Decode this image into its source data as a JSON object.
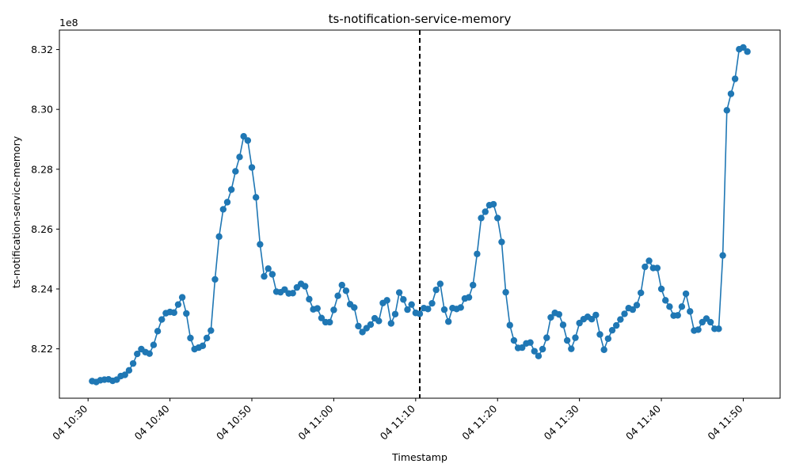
{
  "chart_data": {
    "type": "line",
    "title": "ts-notification-service-memory",
    "xlabel": "Timestamp",
    "ylabel": "ts-notification-service-memory",
    "y_offset_label": "1e8",
    "y_scale": 100000000.0,
    "ylim": [
      8.2035,
      8.3265
    ],
    "yticks": [
      8.22,
      8.24,
      8.26,
      8.28,
      8.3,
      8.32
    ],
    "ytick_labels": [
      "8.22",
      "8.24",
      "8.26",
      "8.28",
      "8.30",
      "8.32"
    ],
    "xlim": [
      "04 10:26:30",
      "04 11:54:30"
    ],
    "xticks": [
      "04 10:30",
      "04 10:40",
      "04 10:50",
      "04 11:00",
      "04 11:10",
      "04 11:20",
      "04 11:30",
      "04 11:40",
      "04 11:50"
    ],
    "vline": {
      "x": "04 11:10:30",
      "style": "dashed",
      "color": "#000000"
    },
    "grid": false,
    "series": [
      {
        "color": "#1f77b4",
        "x": [
          "04 10:30:30",
          "04 10:31:00",
          "04 10:31:30",
          "04 10:32:00",
          "04 10:32:30",
          "04 10:33:00",
          "04 10:33:30",
          "04 10:34:00",
          "04 10:34:30",
          "04 10:35:00",
          "04 10:35:30",
          "04 10:36:00",
          "04 10:36:30",
          "04 10:37:00",
          "04 10:37:30",
          "04 10:38:00",
          "04 10:38:30",
          "04 10:39:00",
          "04 10:39:30",
          "04 10:40:00",
          "04 10:40:30",
          "04 10:41:00",
          "04 10:41:30",
          "04 10:42:00",
          "04 10:42:30",
          "04 10:43:00",
          "04 10:43:30",
          "04 10:44:00",
          "04 10:44:30",
          "04 10:45:00",
          "04 10:45:30",
          "04 10:46:00",
          "04 10:46:30",
          "04 10:47:00",
          "04 10:47:30",
          "04 10:48:00",
          "04 10:48:30",
          "04 10:49:00",
          "04 10:49:30",
          "04 10:50:00",
          "04 10:50:30",
          "04 10:51:00",
          "04 10:51:30",
          "04 10:52:00",
          "04 10:52:30",
          "04 10:53:00",
          "04 10:53:30",
          "04 10:54:00",
          "04 10:54:30",
          "04 10:55:00",
          "04 10:55:30",
          "04 10:56:00",
          "04 10:56:30",
          "04 10:57:00",
          "04 10:57:30",
          "04 10:58:00",
          "04 10:58:30",
          "04 10:59:00",
          "04 10:59:30",
          "04 11:00:00",
          "04 11:00:30",
          "04 11:01:00",
          "04 11:01:30",
          "04 11:02:00",
          "04 11:02:30",
          "04 11:03:00",
          "04 11:03:30",
          "04 11:04:00",
          "04 11:04:30",
          "04 11:05:00",
          "04 11:05:30",
          "04 11:06:00",
          "04 11:06:30",
          "04 11:07:00",
          "04 11:07:30",
          "04 11:08:00",
          "04 11:08:30",
          "04 11:09:00",
          "04 11:09:30",
          "04 11:10:00",
          "04 11:10:30",
          "04 11:11:00",
          "04 11:11:30",
          "04 11:12:00",
          "04 11:12:30",
          "04 11:13:00",
          "04 11:13:30",
          "04 11:14:00",
          "04 11:14:30",
          "04 11:15:00",
          "04 11:15:30",
          "04 11:16:00",
          "04 11:16:30",
          "04 11:17:00",
          "04 11:17:30",
          "04 11:18:00",
          "04 11:18:30",
          "04 11:19:00",
          "04 11:19:30",
          "04 11:20:00",
          "04 11:20:30",
          "04 11:21:00",
          "04 11:21:30",
          "04 11:22:00",
          "04 11:22:30",
          "04 11:23:00",
          "04 11:23:30",
          "04 11:24:00",
          "04 11:24:30",
          "04 11:25:00",
          "04 11:25:30",
          "04 11:26:00",
          "04 11:26:30",
          "04 11:27:00",
          "04 11:27:30",
          "04 11:28:00",
          "04 11:28:30",
          "04 11:29:00",
          "04 11:29:30",
          "04 11:30:00",
          "04 11:30:30",
          "04 11:31:00",
          "04 11:31:30",
          "04 11:32:00",
          "04 11:32:30",
          "04 11:33:00",
          "04 11:33:30",
          "04 11:34:00",
          "04 11:34:30",
          "04 11:35:00",
          "04 11:35:30",
          "04 11:36:00",
          "04 11:36:30",
          "04 11:37:00",
          "04 11:37:30",
          "04 11:38:00",
          "04 11:38:30",
          "04 11:39:00",
          "04 11:39:30",
          "04 11:40:00",
          "04 11:40:30",
          "04 11:41:00",
          "04 11:41:30",
          "04 11:42:00",
          "04 11:42:30",
          "04 11:43:00",
          "04 11:43:30",
          "04 11:44:00",
          "04 11:44:30",
          "04 11:45:00",
          "04 11:45:30",
          "04 11:46:00",
          "04 11:46:30",
          "04 11:47:00",
          "04 11:47:30",
          "04 11:48:00",
          "04 11:48:30",
          "04 11:49:00",
          "04 11:49:30",
          "04 11:50:00",
          "04 11:50:30"
        ],
        "y": [
          8.2092,
          8.2089,
          8.2095,
          8.2097,
          8.2098,
          8.2093,
          8.2097,
          8.2109,
          8.2113,
          8.2128,
          8.2151,
          8.2183,
          8.2199,
          8.2189,
          8.2184,
          8.2213,
          8.2259,
          8.2298,
          8.2319,
          8.2323,
          8.2321,
          8.2348,
          8.2372,
          8.2318,
          8.2236,
          8.2199,
          8.2204,
          8.221,
          8.2236,
          8.2261,
          8.2432,
          8.2575,
          8.2666,
          8.269,
          8.2732,
          8.2793,
          8.2841,
          8.291,
          8.2896,
          8.2806,
          8.2706,
          8.2549,
          8.2442,
          8.2468,
          8.2449,
          8.2391,
          8.2389,
          8.2398,
          8.2385,
          8.2386,
          8.2405,
          8.2417,
          8.2409,
          8.2366,
          8.2332,
          8.2335,
          8.2303,
          8.2289,
          8.2289,
          8.233,
          8.2377,
          8.2413,
          8.2394,
          8.2349,
          8.2338,
          8.2276,
          8.2256,
          8.2269,
          8.2281,
          8.2302,
          8.2293,
          8.2353,
          8.2362,
          8.2285,
          8.2316,
          8.2388,
          8.2365,
          8.2331,
          8.2348,
          8.232,
          8.2317,
          8.2336,
          8.2333,
          8.2352,
          8.2397,
          8.2417,
          8.2331,
          8.2291,
          8.2336,
          8.2333,
          8.2338,
          8.2368,
          8.2372,
          8.2413,
          8.2517,
          8.2637,
          8.2658,
          8.268,
          8.2683,
          8.2637,
          8.2557,
          8.2389,
          8.2279,
          8.2228,
          8.2203,
          8.2204,
          8.2218,
          8.2221,
          8.2192,
          8.2176,
          8.2199,
          8.2237,
          8.2305,
          8.232,
          8.2315,
          8.228,
          8.2228,
          8.22,
          8.2237,
          8.2286,
          8.2299,
          8.2307,
          8.2299,
          8.2313,
          8.2248,
          8.2197,
          8.2234,
          8.2262,
          8.2278,
          8.2298,
          8.2317,
          8.2336,
          8.2331,
          8.2346,
          8.2387,
          8.2474,
          8.2494,
          8.247,
          8.247,
          8.24,
          8.2362,
          8.2341,
          8.2311,
          8.2312,
          8.2341,
          8.2384,
          8.2325,
          8.2261,
          8.2264,
          8.2289,
          8.2301,
          8.2289,
          8.2267,
          8.2267,
          8.2512,
          8.2997,
          8.3052,
          8.3102,
          8.3201,
          8.3207,
          8.3193
        ]
      }
    ]
  }
}
